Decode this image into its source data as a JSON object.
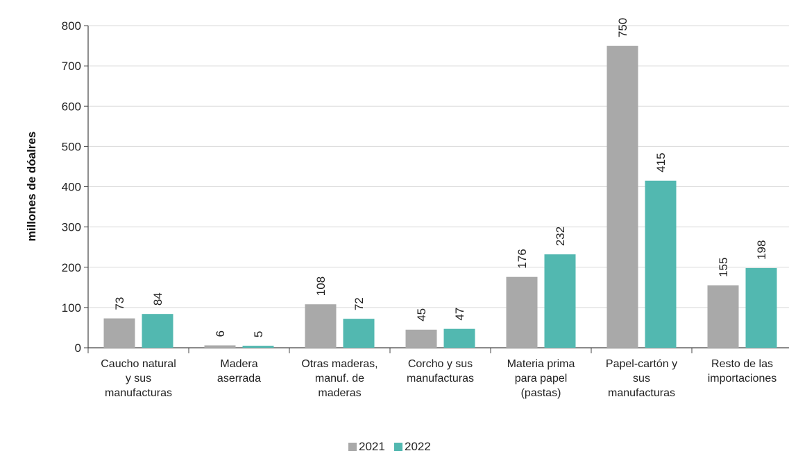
{
  "chart_data": {
    "type": "bar",
    "title": "",
    "xlabel": "",
    "ylabel": "millones de dóalres",
    "ylim": [
      0,
      800
    ],
    "yticks": [
      0,
      100,
      200,
      300,
      400,
      500,
      600,
      700,
      800
    ],
    "grid": true,
    "legend_position": "bottom-center",
    "categories": [
      [
        "Caucho natural",
        "y sus",
        "manufacturas"
      ],
      [
        "Madera",
        "aserrada"
      ],
      [
        "Otras maderas,",
        "manuf. de",
        "maderas"
      ],
      [
        "Corcho y sus",
        "manufacturas"
      ],
      [
        "Materia prima",
        "para papel",
        "(pastas)"
      ],
      [
        "Papel-cartón y",
        "sus",
        "manufacturas"
      ],
      [
        "Resto de las",
        "importaciones"
      ]
    ],
    "series": [
      {
        "name": "2021",
        "color": "#a9a9a9",
        "values": [
          73,
          6,
          108,
          45,
          176,
          750,
          155
        ]
      },
      {
        "name": "2022",
        "color": "#52b8b0",
        "values": [
          84,
          5,
          72,
          47,
          232,
          415,
          198
        ]
      }
    ]
  }
}
